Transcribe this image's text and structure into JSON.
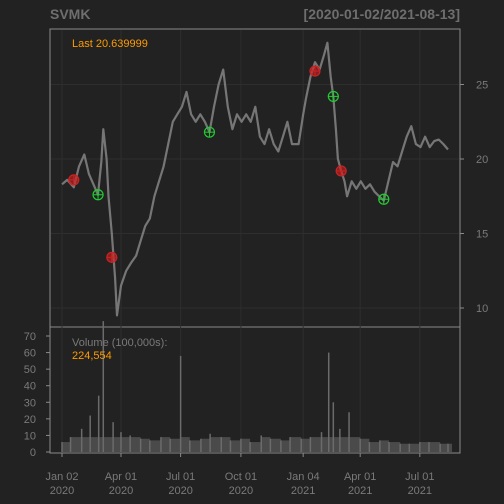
{
  "header": {
    "symbol": "SVMK",
    "date_range": "[2020-01-02/2021-08-13]"
  },
  "price_panel": {
    "last_label": "Last 20.639999"
  },
  "volume_panel": {
    "label": "Volume (100,000s):",
    "value": "224,554"
  },
  "colors": {
    "background": "#222222",
    "frame": "#8a8a8a",
    "grid": "#2e2e2e",
    "price_line": "#7b7b7b",
    "volume_bar": "#6b6b6b",
    "accent_orange": "#ff9b00",
    "buy_marker": "#22cc33",
    "sell_marker": "#cc2222",
    "text_muted": "#7a7a7a"
  },
  "chart_data": [
    {
      "type": "line",
      "series": [
        {
          "name": "SVMK",
          "points": [
            [
              "2020-01-02",
              18.3
            ],
            [
              "2020-01-10",
              18.6
            ],
            [
              "2020-01-20",
              18.1
            ],
            [
              "2020-01-28",
              19.5
            ],
            [
              "2020-02-05",
              20.3
            ],
            [
              "2020-02-12",
              19.0
            ],
            [
              "2020-02-20",
              18.2
            ],
            [
              "2020-02-26",
              17.6
            ],
            [
              "2020-03-02",
              19.8
            ],
            [
              "2020-03-05",
              22.0
            ],
            [
              "2020-03-10",
              20.0
            ],
            [
              "2020-03-13",
              17.5
            ],
            [
              "2020-03-18",
              15.0
            ],
            [
              "2020-03-23",
              12.0
            ],
            [
              "2020-03-26",
              9.5
            ],
            [
              "2020-04-01",
              11.5
            ],
            [
              "2020-04-09",
              12.5
            ],
            [
              "2020-04-16",
              13.0
            ],
            [
              "2020-04-24",
              13.5
            ],
            [
              "2020-05-01",
              14.5
            ],
            [
              "2020-05-08",
              15.5
            ],
            [
              "2020-05-15",
              16.0
            ],
            [
              "2020-05-22",
              17.5
            ],
            [
              "2020-05-29",
              18.5
            ],
            [
              "2020-06-05",
              19.5
            ],
            [
              "2020-06-12",
              21.0
            ],
            [
              "2020-06-19",
              22.5
            ],
            [
              "2020-06-26",
              23.0
            ],
            [
              "2020-07-03",
              23.5
            ],
            [
              "2020-07-10",
              24.5
            ],
            [
              "2020-07-17",
              23.0
            ],
            [
              "2020-07-24",
              22.5
            ],
            [
              "2020-07-31",
              23.0
            ],
            [
              "2020-08-07",
              22.5
            ],
            [
              "2020-08-14",
              21.8
            ],
            [
              "2020-08-21",
              23.5
            ],
            [
              "2020-08-28",
              25.0
            ],
            [
              "2020-09-04",
              26.0
            ],
            [
              "2020-09-11",
              23.5
            ],
            [
              "2020-09-18",
              22.0
            ],
            [
              "2020-09-25",
              23.0
            ],
            [
              "2020-10-02",
              22.5
            ],
            [
              "2020-10-09",
              23.0
            ],
            [
              "2020-10-16",
              22.5
            ],
            [
              "2020-10-23",
              23.5
            ],
            [
              "2020-10-30",
              21.5
            ],
            [
              "2020-11-06",
              21.0
            ],
            [
              "2020-11-13",
              22.0
            ],
            [
              "2020-11-20",
              21.0
            ],
            [
              "2020-11-27",
              20.5
            ],
            [
              "2020-12-04",
              21.5
            ],
            [
              "2020-12-11",
              22.5
            ],
            [
              "2020-12-18",
              21.0
            ],
            [
              "2020-12-28",
              21.0
            ],
            [
              "2021-01-04",
              23.0
            ],
            [
              "2021-01-08",
              24.0
            ],
            [
              "2021-01-15",
              25.5
            ],
            [
              "2021-01-22",
              26.5
            ],
            [
              "2021-01-29",
              26.0
            ],
            [
              "2021-02-05",
              27.0
            ],
            [
              "2021-02-10",
              27.8
            ],
            [
              "2021-02-15",
              25.5
            ],
            [
              "2021-02-19",
              24.2
            ],
            [
              "2021-02-23",
              22.0
            ],
            [
              "2021-02-26",
              20.0
            ],
            [
              "2021-03-03",
              19.2
            ],
            [
              "2021-03-08",
              18.5
            ],
            [
              "2021-03-12",
              17.5
            ],
            [
              "2021-03-19",
              18.5
            ],
            [
              "2021-03-26",
              18.0
            ],
            [
              "2021-04-02",
              18.5
            ],
            [
              "2021-04-09",
              18.0
            ],
            [
              "2021-04-16",
              18.3
            ],
            [
              "2021-04-23",
              17.8
            ],
            [
              "2021-04-30",
              17.5
            ],
            [
              "2021-05-07",
              17.2
            ],
            [
              "2021-05-14",
              18.5
            ],
            [
              "2021-05-21",
              19.8
            ],
            [
              "2021-05-28",
              19.5
            ],
            [
              "2021-06-04",
              20.5
            ],
            [
              "2021-06-11",
              21.5
            ],
            [
              "2021-06-18",
              22.2
            ],
            [
              "2021-06-25",
              21.0
            ],
            [
              "2021-07-02",
              20.8
            ],
            [
              "2021-07-09",
              21.5
            ],
            [
              "2021-07-16",
              20.8
            ],
            [
              "2021-07-23",
              21.2
            ],
            [
              "2021-07-30",
              21.3
            ],
            [
              "2021-08-06",
              21.0
            ],
            [
              "2021-08-13",
              20.64
            ]
          ]
        }
      ],
      "markers": [
        {
          "date": "2020-01-20",
          "price": 18.6,
          "kind": "sell"
        },
        {
          "date": "2020-02-26",
          "price": 17.6,
          "kind": "buy"
        },
        {
          "date": "2020-03-18",
          "price": 13.4,
          "kind": "sell"
        },
        {
          "date": "2020-08-14",
          "price": 21.8,
          "kind": "buy"
        },
        {
          "date": "2021-01-22",
          "price": 25.9,
          "kind": "sell"
        },
        {
          "date": "2021-02-19",
          "price": 24.2,
          "kind": "buy"
        },
        {
          "date": "2021-03-03",
          "price": 19.2,
          "kind": "sell"
        },
        {
          "date": "2021-05-07",
          "price": 17.3,
          "kind": "buy"
        }
      ],
      "y_axis": {
        "ticks": [
          10,
          15,
          20,
          25
        ],
        "side": "right"
      },
      "grid": true
    },
    {
      "type": "bar",
      "series": [
        {
          "values": [
            [
              "2020-01-02",
              6
            ],
            [
              "2020-01-15",
              9
            ],
            [
              "2020-02-01",
              14
            ],
            [
              "2020-02-14",
              22
            ],
            [
              "2020-02-27",
              34
            ],
            [
              "2020-03-05",
              79
            ],
            [
              "2020-03-20",
              18
            ],
            [
              "2020-04-01",
              12
            ],
            [
              "2020-04-15",
              10
            ],
            [
              "2020-05-01",
              8
            ],
            [
              "2020-05-15",
              7
            ],
            [
              "2020-06-01",
              9
            ],
            [
              "2020-06-15",
              8
            ],
            [
              "2020-07-01",
              58
            ],
            [
              "2020-07-15",
              7
            ],
            [
              "2020-08-01",
              8
            ],
            [
              "2020-08-15",
              11
            ],
            [
              "2020-09-01",
              9
            ],
            [
              "2020-09-15",
              7
            ],
            [
              "2020-10-01",
              8
            ],
            [
              "2020-10-15",
              6
            ],
            [
              "2020-11-01",
              10
            ],
            [
              "2020-11-15",
              8
            ],
            [
              "2020-12-01",
              7
            ],
            [
              "2020-12-15",
              9
            ],
            [
              "2021-01-01",
              8
            ],
            [
              "2021-01-15",
              9
            ],
            [
              "2021-02-01",
              12
            ],
            [
              "2021-02-12",
              60
            ],
            [
              "2021-02-19",
              30
            ],
            [
              "2021-03-01",
              14
            ],
            [
              "2021-03-15",
              24
            ],
            [
              "2021-04-01",
              8
            ],
            [
              "2021-04-15",
              6
            ],
            [
              "2021-05-01",
              7
            ],
            [
              "2021-05-15",
              6
            ],
            [
              "2021-06-01",
              5
            ],
            [
              "2021-06-15",
              5
            ],
            [
              "2021-07-01",
              6
            ],
            [
              "2021-07-15",
              6
            ],
            [
              "2021-08-01",
              5
            ],
            [
              "2021-08-13",
              5
            ]
          ]
        }
      ],
      "y_axis": {
        "ticks": [
          0,
          10,
          20,
          30,
          40,
          50,
          60,
          70
        ],
        "side": "left"
      }
    }
  ],
  "x_axis": {
    "ticks": [
      {
        "date": "2020-01-02",
        "month": "Jan 02",
        "year": "2020"
      },
      {
        "date": "2020-04-01",
        "month": "Apr 01",
        "year": "2020"
      },
      {
        "date": "2020-07-01",
        "month": "Jul 01",
        "year": "2020"
      },
      {
        "date": "2020-10-01",
        "month": "Oct 01",
        "year": "2020"
      },
      {
        "date": "2021-01-04",
        "month": "Jan 04",
        "year": "2021"
      },
      {
        "date": "2021-04-01",
        "month": "Apr 01",
        "year": "2021"
      },
      {
        "date": "2021-07-01",
        "month": "Jul 01",
        "year": "2021"
      }
    ]
  }
}
